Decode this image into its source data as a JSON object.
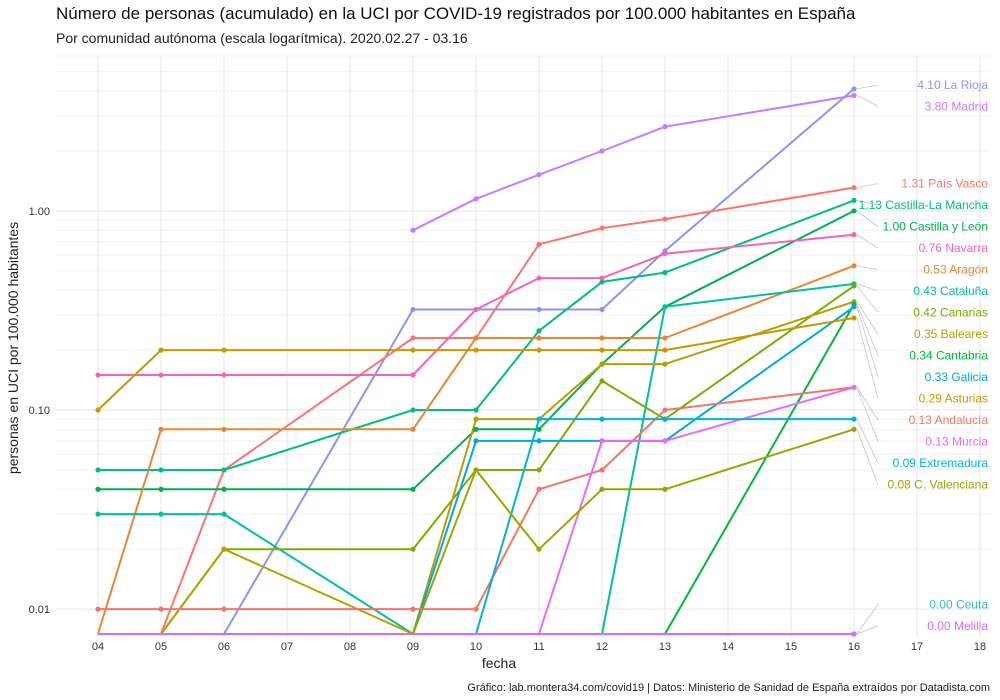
{
  "title": "Número de personas (acumulado) en la UCI por COVID-19 registrados por 100.000 habitantes en España",
  "subtitle": "Por comunidad autónoma (escala logarítmica). 2020.02.27 - 03.16",
  "caption": "Gráfico: lab.montera34.com/covid19 | Datos: Ministerio de Sanidad de España extraídos por Datadista.com",
  "chart_data": {
    "type": "line",
    "title": "Número de personas (acumulado) en la UCI por COVID-19 registrados por 100.000 habitantes en España",
    "xlabel": "fecha",
    "ylabel": "personas en UCI por 100.000 habitantes",
    "y_scale": "log",
    "grid": true,
    "legend": "end-of-line labels on right",
    "x_ticks": [
      "04",
      "05",
      "06",
      "07",
      "08",
      "09",
      "10",
      "11",
      "12",
      "13",
      "14",
      "15",
      "16",
      "17",
      "18"
    ],
    "y_ticks": [
      {
        "value": 0.01,
        "label": "0.01"
      },
      {
        "value": 0.1,
        "label": "0.10"
      },
      {
        "value": 1,
        "label": "1.00"
      }
    ],
    "x_range": [
      4,
      18
    ],
    "y_floor": 0.0075,
    "y_range": [
      0.0075,
      6
    ],
    "series": [
      {
        "name": "La Rioja",
        "color": "#8b93f5",
        "label": "4.10 La Rioja",
        "points": [
          [
            4,
            0
          ],
          [
            5,
            0
          ],
          [
            6,
            0
          ],
          [
            9,
            0.32
          ],
          [
            10,
            0.32
          ],
          [
            11,
            0.32
          ],
          [
            12,
            0.32
          ],
          [
            13,
            0.63
          ],
          [
            16,
            4.1
          ]
        ]
      },
      {
        "name": "Madrid",
        "color": "#c77cff",
        "label": "3.80 Madrid",
        "points": [
          [
            9,
            0.8
          ],
          [
            10,
            1.15
          ],
          [
            11,
            1.52
          ],
          [
            12,
            2.0
          ],
          [
            13,
            2.65
          ],
          [
            16,
            3.8
          ]
        ]
      },
      {
        "name": "País Vasco",
        "color": "#f8766d",
        "label": "1.31 País Vasco",
        "points": [
          [
            4,
            0
          ],
          [
            5,
            0
          ],
          [
            6,
            0.05
          ],
          [
            9,
            0.23
          ],
          [
            10,
            0.23
          ],
          [
            11,
            0.68
          ],
          [
            12,
            0.82
          ],
          [
            13,
            0.91
          ],
          [
            16,
            1.31
          ]
        ]
      },
      {
        "name": "Castilla-La Mancha",
        "color": "#00bf7d",
        "label": "1.13 Castilla-La Mancha",
        "points": [
          [
            4,
            0.05
          ],
          [
            5,
            0.05
          ],
          [
            6,
            0.05
          ],
          [
            9,
            0.1
          ],
          [
            10,
            0.1
          ],
          [
            11,
            0.25
          ],
          [
            12,
            0.44
          ],
          [
            13,
            0.49
          ],
          [
            16,
            1.13
          ]
        ]
      },
      {
        "name": "Castilla y León",
        "color": "#00b050",
        "label": "1.00 Castilla y León",
        "points": [
          [
            4,
            0.04
          ],
          [
            5,
            0.04
          ],
          [
            6,
            0.04
          ],
          [
            9,
            0.04
          ],
          [
            10,
            0.08
          ],
          [
            11,
            0.08
          ],
          [
            12,
            0.17
          ],
          [
            13,
            0.33
          ],
          [
            16,
            1.0
          ]
        ]
      },
      {
        "name": "Navarra",
        "color": "#f564b8",
        "label": "0.76 Navarra",
        "points": [
          [
            4,
            0.15
          ],
          [
            5,
            0.15
          ],
          [
            6,
            0.15
          ],
          [
            9,
            0.15
          ],
          [
            10,
            0.32
          ],
          [
            11,
            0.46
          ],
          [
            12,
            0.46
          ],
          [
            13,
            0.61
          ],
          [
            16,
            0.76
          ]
        ]
      },
      {
        "name": "Aragón",
        "color": "#e58736",
        "label": "0.53 Aragón",
        "points": [
          [
            4,
            0
          ],
          [
            5,
            0.08
          ],
          [
            6,
            0.08
          ],
          [
            9,
            0.08
          ],
          [
            10,
            0.23
          ],
          [
            11,
            0.23
          ],
          [
            12,
            0.23
          ],
          [
            13,
            0.23
          ],
          [
            16,
            0.53
          ]
        ]
      },
      {
        "name": "Cataluña",
        "color": "#00bfa5",
        "label": "0.43 Cataluña",
        "points": [
          [
            4,
            0.03
          ],
          [
            5,
            0.03
          ],
          [
            6,
            0.03
          ],
          [
            9,
            0
          ],
          [
            10,
            0
          ],
          [
            11,
            0
          ],
          [
            12,
            0
          ],
          [
            13,
            0.33
          ],
          [
            16,
            0.43
          ]
        ]
      },
      {
        "name": "Canarias",
        "color": "#7cae00",
        "label": "0.42 Canarias",
        "points": [
          [
            4,
            0
          ],
          [
            5,
            0
          ],
          [
            6,
            0.02
          ],
          [
            9,
            0.02
          ],
          [
            10,
            0.05
          ],
          [
            11,
            0.05
          ],
          [
            12,
            0.14
          ],
          [
            13,
            0.09
          ],
          [
            16,
            0.42
          ]
        ]
      },
      {
        "name": "Baleares",
        "color": "#b5a000",
        "label": "0.35 Baleares",
        "points": [
          [
            4,
            0
          ],
          [
            5,
            0
          ],
          [
            6,
            0.02
          ],
          [
            9,
            0
          ],
          [
            10,
            0.09
          ],
          [
            11,
            0.09
          ],
          [
            12,
            0.17
          ],
          [
            13,
            0.17
          ],
          [
            16,
            0.35
          ]
        ]
      },
      {
        "name": "Cantabria",
        "color": "#00ba38",
        "label": "0.34 Cantabria",
        "points": [
          [
            13,
            0
          ],
          [
            16,
            0.34
          ]
        ]
      },
      {
        "name": "Galicia",
        "color": "#00a9e0",
        "label": "0.33 Galicia",
        "points": [
          [
            9,
            0
          ],
          [
            10,
            0.07
          ],
          [
            11,
            0.07
          ],
          [
            12,
            0.07
          ],
          [
            13,
            0.07
          ],
          [
            16,
            0.33
          ]
        ]
      },
      {
        "name": "Asturias",
        "color": "#c99800",
        "label": "0.29 Asturias",
        "points": [
          [
            4,
            0.1
          ],
          [
            5,
            0.2
          ],
          [
            6,
            0.2
          ],
          [
            9,
            0.2
          ],
          [
            10,
            0.2
          ],
          [
            11,
            0.2
          ],
          [
            12,
            0.2
          ],
          [
            13,
            0.2
          ],
          [
            16,
            0.29
          ]
        ]
      },
      {
        "name": "Andalucía",
        "color": "#f2766b",
        "label": "0.13 Andalucía",
        "points": [
          [
            4,
            0.01
          ],
          [
            5,
            0.01
          ],
          [
            6,
            0.01
          ],
          [
            9,
            0.01
          ],
          [
            10,
            0.01
          ],
          [
            11,
            0.04
          ],
          [
            12,
            0.05
          ],
          [
            13,
            0.1
          ],
          [
            16,
            0.13
          ]
        ]
      },
      {
        "name": "Murcia",
        "color": "#e76bf3",
        "label": "0.13 Murcia",
        "points": [
          [
            11,
            0
          ],
          [
            12,
            0.07
          ],
          [
            13,
            0.07
          ],
          [
            16,
            0.13
          ]
        ]
      },
      {
        "name": "Extremadura",
        "color": "#00b4d8",
        "label": "0.09 Extremadura",
        "points": [
          [
            10,
            0
          ],
          [
            11,
            0.09
          ],
          [
            12,
            0.09
          ],
          [
            13,
            0.09
          ],
          [
            16,
            0.09
          ]
        ]
      },
      {
        "name": "C. Valenciana",
        "color": "#9aa600",
        "label": "0.08 C. Valenciana",
        "points": [
          [
            9,
            0
          ],
          [
            10,
            0.05
          ],
          [
            11,
            0.02
          ],
          [
            12,
            0.04
          ],
          [
            13,
            0.04
          ],
          [
            16,
            0.08
          ]
        ]
      },
      {
        "name": "Ceuta",
        "color": "#35b7d0",
        "label": "0.00 Ceuta",
        "points": [
          [
            4,
            0
          ],
          [
            16,
            0
          ]
        ]
      },
      {
        "name": "Melilla",
        "color": "#d36ef0",
        "label": "0.00 Melilla",
        "points": [
          [
            4,
            0
          ],
          [
            16,
            0
          ]
        ]
      }
    ]
  }
}
